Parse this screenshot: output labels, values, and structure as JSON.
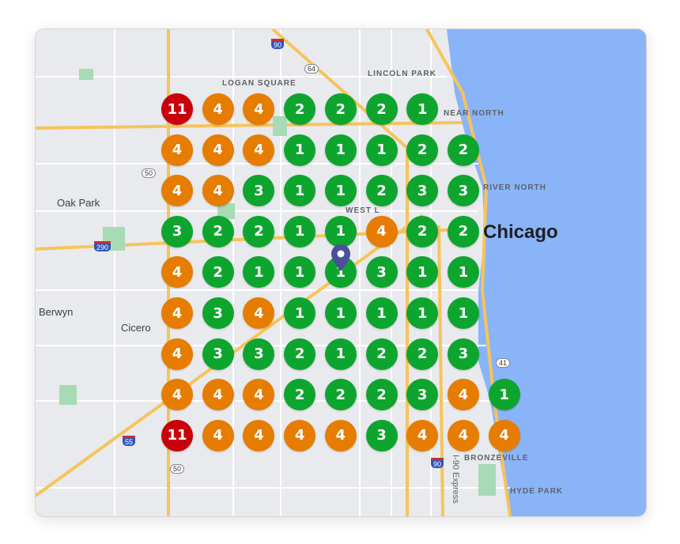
{
  "map": {
    "labels": {
      "logan_square": "LOGAN SQUARE",
      "lincoln_park": "LINCOLN PARK",
      "near_north": "NEAR NORTH",
      "river_north": "RIVER NORTH",
      "west_loop": "WEST L",
      "bronzeville": "BRONZEVILLE",
      "hyde_park": "HYDE PARK",
      "oak_park": "Oak Park",
      "berwyn": "Berwyn",
      "cicero": "Cicero",
      "chicago": "Chicago",
      "i90_express": "I-90 Express"
    },
    "shields": {
      "i90_top": "90",
      "us64": "64",
      "us50_top": "50",
      "i290": "290",
      "i55": "55",
      "us50_bottom": "50",
      "i90_bottom": "90",
      "us41": "41"
    },
    "colors": {
      "rank_1_3": "#0ea52f",
      "rank_4_10": "#e67c00",
      "rank_11_plus": "#c8000c",
      "water": "#8ab4f8",
      "pin": "#4c4f9a"
    },
    "pin_icon": "map-pin-icon",
    "grid": [
      [
        11,
        4,
        4,
        2,
        2,
        2,
        1,
        null,
        null
      ],
      [
        4,
        4,
        4,
        1,
        1,
        1,
        2,
        2,
        null
      ],
      [
        4,
        4,
        3,
        1,
        1,
        2,
        3,
        3,
        null
      ],
      [
        3,
        2,
        2,
        1,
        1,
        4,
        2,
        2,
        null
      ],
      [
        4,
        2,
        1,
        1,
        1,
        3,
        1,
        1,
        null
      ],
      [
        4,
        3,
        4,
        1,
        1,
        1,
        1,
        1,
        null
      ],
      [
        4,
        3,
        3,
        2,
        1,
        2,
        2,
        3,
        null
      ],
      [
        4,
        4,
        4,
        2,
        2,
        2,
        3,
        4,
        1
      ],
      [
        11,
        4,
        4,
        4,
        4,
        3,
        4,
        4,
        4
      ]
    ]
  }
}
